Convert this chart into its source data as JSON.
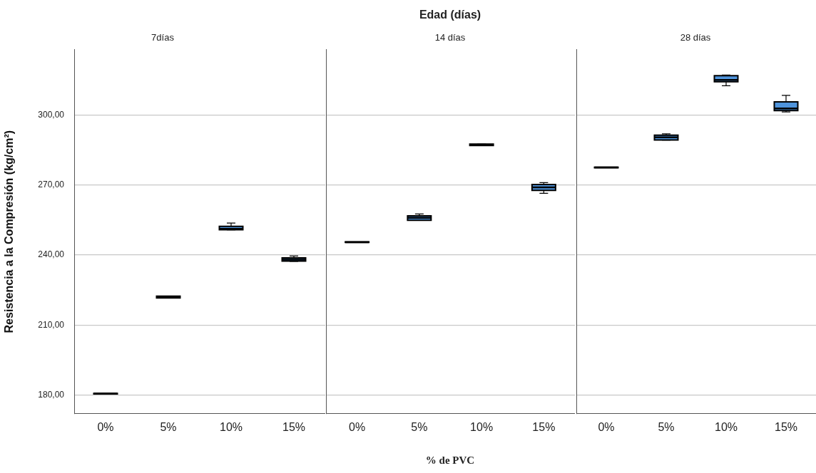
{
  "chart_data": [
    {
      "type": "box",
      "title": "7días",
      "ylabel": "Resistencia a la Compresión (kg/cm²)",
      "categories": [
        "0%",
        "5%",
        "10%",
        "15%"
      ],
      "ylim": [
        172,
        328
      ],
      "yticks": [
        {
          "value": 180,
          "label": "180,00"
        },
        {
          "value": 210,
          "label": "210,00"
        },
        {
          "value": 240,
          "label": "240,00"
        },
        {
          "value": 270,
          "label": "270,00"
        },
        {
          "value": 300,
          "label": "300,00"
        }
      ],
      "grid": "y",
      "series": [
        {
          "color": "#4f94dc",
          "boxes": [
            {
              "low": 180.5,
              "q1": 180.5,
              "median": 180.6,
              "q3": 180.7,
              "high": 180.7
            },
            {
              "low": 221.6,
              "q1": 221.6,
              "median": 222.0,
              "q3": 222.4,
              "high": 222.4
            },
            {
              "low": 250.8,
              "q1": 250.8,
              "median": 251.2,
              "q3": 252.3,
              "high": 253.7
            },
            {
              "low": 237.3,
              "q1": 237.4,
              "median": 238.0,
              "q3": 238.8,
              "high": 239.6
            }
          ]
        }
      ]
    },
    {
      "type": "box",
      "title": "14 días",
      "xlabel": "% de PVC",
      "annotations": [
        "Edad (días)"
      ],
      "categories": [
        "0%",
        "5%",
        "10%",
        "15%"
      ],
      "ylim": [
        172,
        328
      ],
      "yticks": [
        180,
        210,
        240,
        270,
        300
      ],
      "grid": "y",
      "tick_labels": "x",
      "series": [
        {
          "color": "#4f94dc",
          "boxes": [
            {
              "low": 245.4,
              "q1": 245.4,
              "median": 245.5,
              "q3": 245.6,
              "high": 245.6
            },
            {
              "low": 254.8,
              "q1": 254.9,
              "median": 255.9,
              "q3": 256.8,
              "high": 257.6
            },
            {
              "low": 286.9,
              "q1": 286.9,
              "median": 287.2,
              "q3": 287.5,
              "high": 287.5
            },
            {
              "low": 266.4,
              "q1": 267.7,
              "median": 269.0,
              "q3": 270.2,
              "high": 271.0
            }
          ]
        }
      ]
    },
    {
      "type": "box",
      "title": "28 días",
      "categories": [
        "0%",
        "5%",
        "10%",
        "15%"
      ],
      "ylim": [
        172,
        328
      ],
      "yticks": [
        180,
        210,
        240,
        270,
        300
      ],
      "grid": "y",
      "tick_labels": "x",
      "series": [
        {
          "color": "#4f94dc",
          "boxes": [
            {
              "low": 277.4,
              "q1": 277.4,
              "median": 277.5,
              "q3": 277.6,
              "high": 277.6
            },
            {
              "low": 289.2,
              "q1": 289.3,
              "median": 290.4,
              "q3": 291.3,
              "high": 291.9
            },
            {
              "low": 312.5,
              "q1": 314.2,
              "median": 315.0,
              "q3": 316.8,
              "high": 317.1
            },
            {
              "low": 301.3,
              "q1": 301.9,
              "median": 302.8,
              "q3": 305.6,
              "high": 308.4
            }
          ]
        }
      ]
    }
  ]
}
